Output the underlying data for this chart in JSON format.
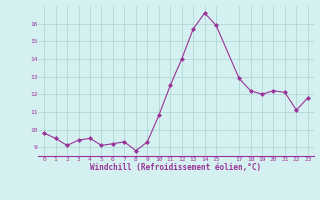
{
  "x": [
    0,
    1,
    2,
    3,
    4,
    5,
    6,
    7,
    8,
    9,
    10,
    11,
    12,
    13,
    14,
    15,
    17,
    18,
    19,
    20,
    21,
    22,
    23
  ],
  "y": [
    9.8,
    9.5,
    9.1,
    9.4,
    9.5,
    9.1,
    9.2,
    9.3,
    8.8,
    9.3,
    10.8,
    12.5,
    14.0,
    15.7,
    16.6,
    15.9,
    12.9,
    12.2,
    12.0,
    12.2,
    12.1,
    11.1,
    11.8
  ],
  "line_color": "#993399",
  "marker_color": "#993399",
  "bg_color": "#d5f0f0",
  "grid_color": "#b0d8d8",
  "xlabel": "Windchill (Refroidissement éolien,°C)",
  "xlabel_color": "#993399",
  "tick_color": "#993399",
  "yticks": [
    9,
    10,
    11,
    12,
    13,
    14,
    15,
    16
  ],
  "xticks": [
    0,
    1,
    2,
    3,
    4,
    5,
    6,
    7,
    8,
    9,
    10,
    11,
    12,
    13,
    14,
    15,
    17,
    18,
    19,
    20,
    21,
    22,
    23
  ],
  "ylim": [
    8.5,
    17.0
  ],
  "xlim": [
    -0.5,
    23.5
  ]
}
